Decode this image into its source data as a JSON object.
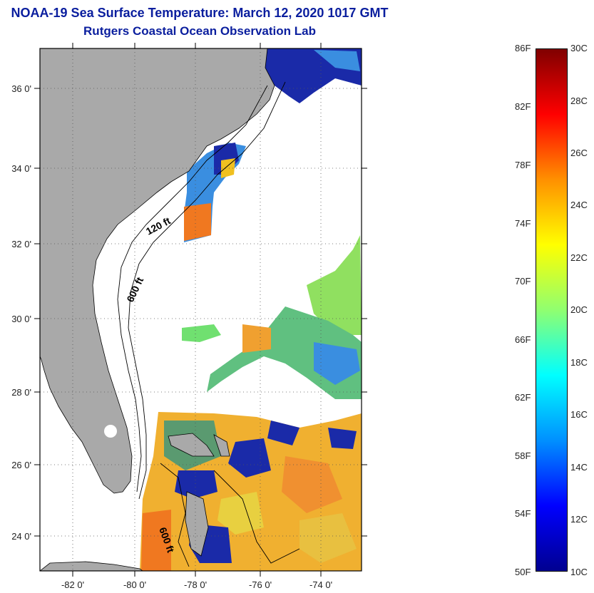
{
  "title": "NOAA-19 Sea Surface Temperature:  March 12, 2020 1017 GMT",
  "subtitle": "Rutgers Coastal Ocean Observation Lab",
  "lat_ticks": [
    "36 0'",
    "34 0'",
    "32 0'",
    "30 0'",
    "28 0'",
    "26 0'",
    "24 0'"
  ],
  "lon_ticks": [
    "-82 0'",
    "-80 0'",
    "-78 0'",
    "-76 0'",
    "-74 0'"
  ],
  "contours": {
    "c120": "120 ft",
    "c600a": "600 ft",
    "c600b": "600 ft"
  },
  "colorbar": {
    "fahrenheit": [
      "86F",
      "82F",
      "78F",
      "74F",
      "70F",
      "66F",
      "62F",
      "58F",
      "54F",
      "50F"
    ],
    "celsius": [
      "30C",
      "28C",
      "26C",
      "24C",
      "22C",
      "20C",
      "18C",
      "16C",
      "14C",
      "12C",
      "10C"
    ],
    "colors": [
      "#000090",
      "#0000ff",
      "#0090ff",
      "#00ffff",
      "#90ff70",
      "#ffff00",
      "#ff9000",
      "#ff0000",
      "#800000"
    ]
  },
  "colors": {
    "land": "#a9a9a9",
    "title": "#0a1e9e",
    "ocean_cold": "#1a2aa8",
    "ocean_cool": "#3a8ee0",
    "ocean_mild": "#70e070",
    "ocean_warm": "#f0c020",
    "ocean_hot": "#f07820"
  }
}
